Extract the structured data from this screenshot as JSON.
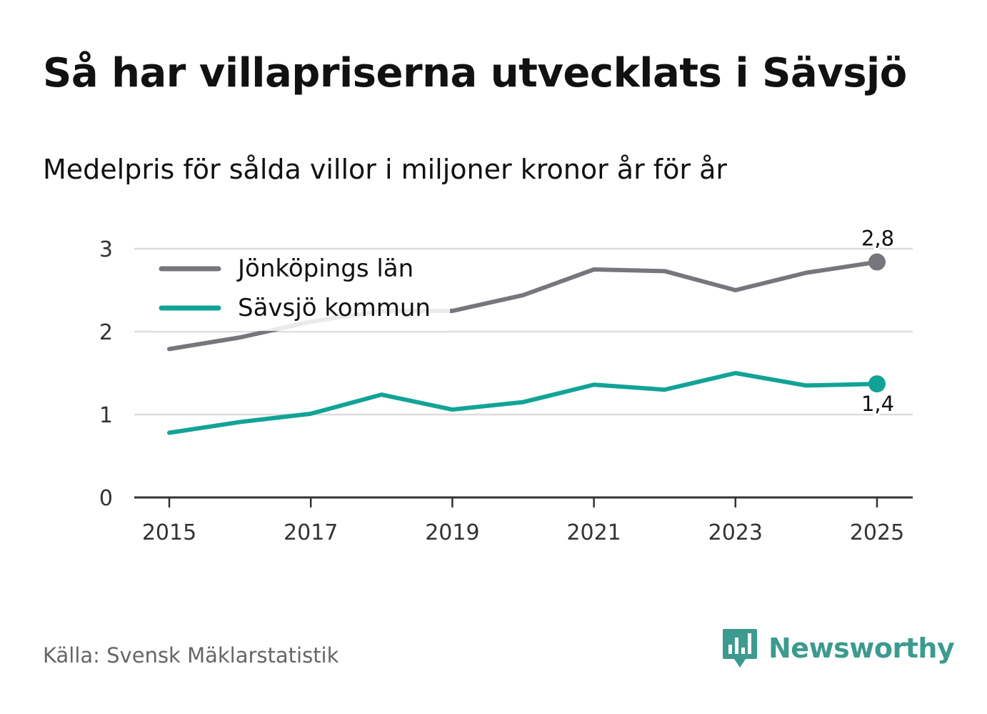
{
  "header": {
    "title": "Så har villapriserna utvecklats i Sävsjö",
    "subtitle": "Medelpris för sålda villor i miljoner kronor år för år"
  },
  "footer": {
    "source": "Källa: Svensk Mäklarstatistik",
    "brand": "Newsworthy",
    "brand_icon": "bar-chart-speech-icon"
  },
  "colors": {
    "jonkoping": "#77767c",
    "savsjo": "#12a397",
    "grid": "#dddddd",
    "axis": "#333333",
    "brand": "#3d9a8e"
  },
  "chart_data": {
    "type": "line",
    "title": "Så har villapriserna utvecklats i Sävsjö",
    "subtitle": "Medelpris för sålda villor i miljoner kronor år för år",
    "x": [
      2015,
      2016,
      2017,
      2018,
      2019,
      2020,
      2021,
      2022,
      2023,
      2024,
      2025
    ],
    "x_ticks": [
      "2015",
      "2017",
      "2019",
      "2021",
      "2023",
      "2025"
    ],
    "y_ticks": [
      "0",
      "1",
      "2",
      "3"
    ],
    "ylim": [
      0,
      3.2
    ],
    "xlabel": "",
    "ylabel": "",
    "legend_position": "top-left",
    "series": [
      {
        "name": "Jönköpings län",
        "color": "#77767c",
        "values": [
          1.79,
          1.93,
          2.12,
          2.25,
          2.25,
          2.44,
          2.75,
          2.73,
          2.5,
          2.71,
          2.84
        ],
        "end_label": "2,8"
      },
      {
        "name": "Sävsjö kommun",
        "color": "#12a397",
        "values": [
          0.78,
          0.91,
          1.01,
          1.24,
          1.06,
          1.15,
          1.36,
          1.3,
          1.5,
          1.35,
          1.37
        ],
        "end_label": "1,4"
      }
    ]
  }
}
